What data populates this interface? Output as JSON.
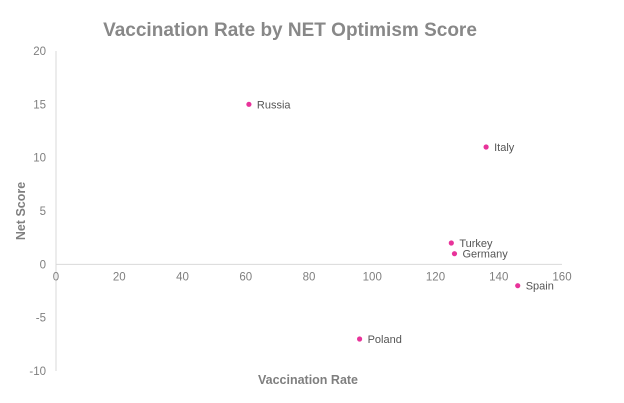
{
  "chart_data": {
    "type": "scatter",
    "title": "Vaccination Rate by NET Optimism Score",
    "xlabel": "Vaccination Rate",
    "ylabel": "Net Score",
    "xlim": [
      0,
      160
    ],
    "ylim": [
      -10,
      20
    ],
    "x_ticks": [
      "0",
      "20",
      "40",
      "60",
      "80",
      "100",
      "120",
      "140",
      "160"
    ],
    "y_ticks": [
      "20",
      "15",
      "10",
      "5",
      "0",
      "-5",
      "-10"
    ],
    "grid": false,
    "legend": "none",
    "points": [
      {
        "label": "Russia",
        "x": 61,
        "y": 15
      },
      {
        "label": "Italy",
        "x": 136,
        "y": 11
      },
      {
        "label": "Turkey",
        "x": 125,
        "y": 2
      },
      {
        "label": "Germany",
        "x": 126,
        "y": 1
      },
      {
        "label": "Spain",
        "x": 146,
        "y": -2
      },
      {
        "label": "Poland",
        "x": 96,
        "y": -7
      }
    ],
    "colors": {
      "point": "#e8339a",
      "title": "#888888",
      "axis_title": "#7f7f7f",
      "tick": "#7f7f7f",
      "label": "#555555",
      "axis_line": "#d9d9d9"
    }
  }
}
